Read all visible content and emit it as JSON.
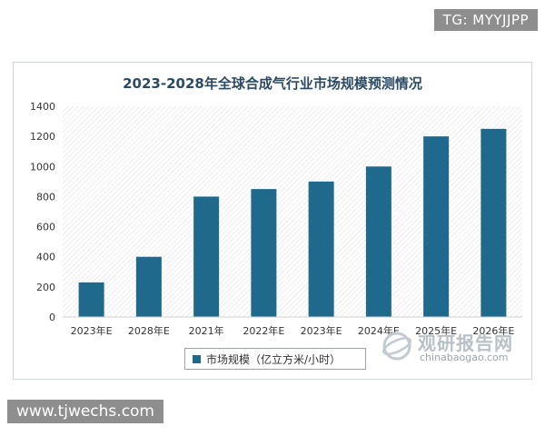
{
  "tg_label": "TG: MYYJJPP",
  "site_label": "www.tjwechs.com",
  "watermark": {
    "title": "观研报告网",
    "url": "chinabaogao.com"
  },
  "colors": {
    "bar": "#1f6a8c",
    "title": "#2b4a63"
  },
  "chart_data": {
    "type": "bar",
    "title": "2023-2028年全球合成气行业市场规模预测情况",
    "categories": [
      "2023年E",
      "2028年E",
      "2021年",
      "2022年E",
      "2023年E",
      "2024年E",
      "2025年E",
      "2026年E"
    ],
    "series": [
      {
        "name": "市场规模（亿立方米/小时）",
        "values": [
          230,
          400,
          800,
          850,
          900,
          1000,
          1200,
          1250
        ]
      }
    ],
    "ylim": [
      0,
      1400
    ],
    "yticks": [
      0,
      200,
      400,
      600,
      800,
      1000,
      1200,
      1400
    ],
    "grid": false,
    "legend": "bottom"
  }
}
